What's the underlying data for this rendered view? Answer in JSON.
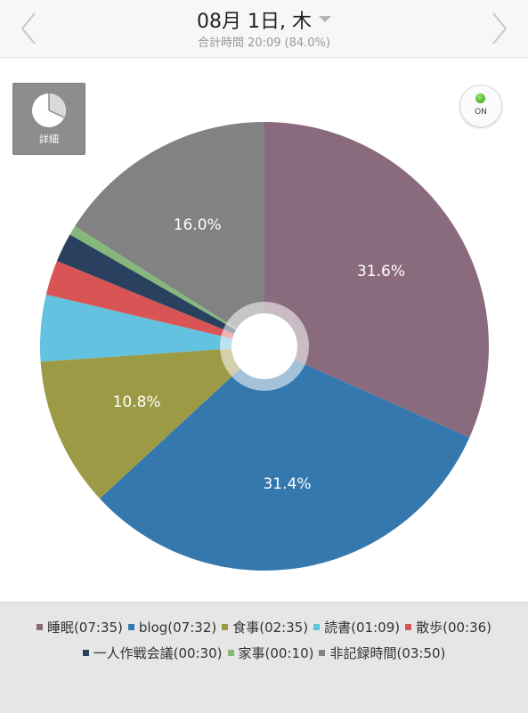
{
  "header": {
    "title": "08月 1日, 木",
    "total_label": "合計時間",
    "total_value": "20:09",
    "total_percent": "(84.0%)"
  },
  "toolbar": {
    "detail_label": "詳細",
    "toggle_label": "ON"
  },
  "chart_data": {
    "type": "pie",
    "title": "",
    "hole": true,
    "start": "12 o'clock, clockwise",
    "slices": [
      {
        "name": "睡眠",
        "time": "07:35",
        "minutes": 455,
        "percent": 31.6,
        "label": "31.6%",
        "color": "#8a6b7e"
      },
      {
        "name": "blog",
        "time": "07:32",
        "minutes": 452,
        "percent": 31.4,
        "label": "31.4%",
        "color": "#3578ae"
      },
      {
        "name": "食事",
        "time": "02:35",
        "minutes": 155,
        "percent": 10.8,
        "label": "10.8%",
        "color": "#9d9a46"
      },
      {
        "name": "読書",
        "time": "01:09",
        "minutes": 69,
        "percent": 4.8,
        "label": "",
        "color": "#62c2e0"
      },
      {
        "name": "散歩",
        "time": "00:36",
        "minutes": 36,
        "percent": 2.5,
        "label": "",
        "color": "#d95555"
      },
      {
        "name": "一人作戦会議",
        "time": "00:30",
        "minutes": 30,
        "percent": 2.1,
        "label": "",
        "color": "#29405e"
      },
      {
        "name": "家事",
        "time": "00:10",
        "minutes": 10,
        "percent": 0.7,
        "label": "",
        "color": "#86b77b"
      },
      {
        "name": "非記録時間",
        "time": "03:50",
        "minutes": 230,
        "percent": 16.0,
        "label": "16.0%",
        "color": "#828282"
      }
    ]
  }
}
